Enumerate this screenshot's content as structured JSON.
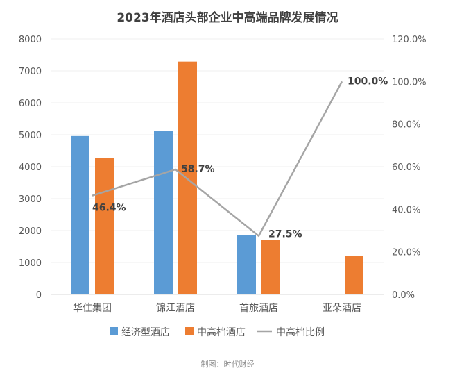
{
  "chart_data": {
    "type": "bar",
    "title": "2023年酒店头部企业中高端品牌发展情况",
    "categories": [
      "华住集团",
      "锦江酒店",
      "首旅酒店",
      "亚朵酒店"
    ],
    "series": [
      {
        "name": "经济型酒店",
        "type": "bar",
        "axis": "left",
        "color": "#5b9bd5",
        "values": [
          4960,
          5130,
          1850,
          0
        ]
      },
      {
        "name": "中高档酒店",
        "type": "bar",
        "axis": "left",
        "color": "#ed7d31",
        "values": [
          4270,
          7290,
          1700,
          1200
        ]
      },
      {
        "name": "中高档比例",
        "type": "line",
        "axis": "right",
        "color": "#a5a5a5",
        "values": [
          46.4,
          58.7,
          27.5,
          100.0
        ],
        "labels": [
          "46.4%",
          "58.7%",
          "27.5%",
          "100.0%"
        ]
      }
    ],
    "ylim_left": [
      0,
      8000
    ],
    "yticks_left": [
      "0",
      "1000",
      "2000",
      "3000",
      "4000",
      "5000",
      "6000",
      "7000",
      "8000"
    ],
    "ylim_right": [
      0,
      120
    ],
    "yticks_right": [
      "0.0%",
      "20.0%",
      "40.0%",
      "60.0%",
      "80.0%",
      "100.0%",
      "120.0%"
    ],
    "grid": true,
    "legend_position": "bottom"
  },
  "footer": "制图：时代财经"
}
